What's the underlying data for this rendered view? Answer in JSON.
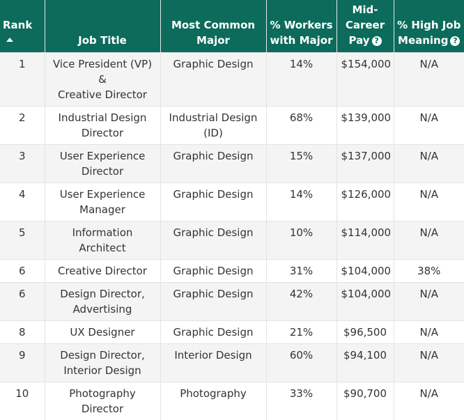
{
  "headers": {
    "rank": "Rank",
    "job_title": "Job Title",
    "major_line1": "Most Common",
    "major_line2": "Major",
    "pct_line1": "% Workers",
    "pct_line2": "with Major",
    "pay_line1": "Mid-",
    "pay_line2": "Career",
    "pay_line3": "Pay",
    "meaning_line1": "% High Job",
    "meaning_line2": "Meaning"
  },
  "icons": {
    "sort": "sort-ascending-icon",
    "help": "question-circle-icon",
    "help_glyph": "?"
  },
  "colors": {
    "header_bg": "#0c6b5a",
    "row_alt": "#f4f4f4"
  },
  "rows": [
    {
      "rank": "1",
      "job1": "Vice President (VP) &",
      "job2": "Creative Director",
      "major1": "Graphic Design",
      "major2": "",
      "pct": "14%",
      "pay": "$154,000",
      "meaning": "N/A"
    },
    {
      "rank": "2",
      "job1": "Industrial Design",
      "job2": "Director",
      "major1": "Industrial Design",
      "major2": "(ID)",
      "pct": "68%",
      "pay": "$139,000",
      "meaning": "N/A"
    },
    {
      "rank": "3",
      "job1": "User Experience",
      "job2": "Director",
      "major1": "Graphic Design",
      "major2": "",
      "pct": "15%",
      "pay": "$137,000",
      "meaning": "N/A"
    },
    {
      "rank": "4",
      "job1": "User Experience",
      "job2": "Manager",
      "major1": "Graphic Design",
      "major2": "",
      "pct": "14%",
      "pay": "$126,000",
      "meaning": "N/A"
    },
    {
      "rank": "5",
      "job1": "Information",
      "job2": "Architect",
      "major1": "Graphic Design",
      "major2": "",
      "pct": "10%",
      "pay": "$114,000",
      "meaning": "N/A"
    },
    {
      "rank": "6",
      "job1": "Creative Director",
      "job2": "",
      "major1": "Graphic Design",
      "major2": "",
      "pct": "31%",
      "pay": "$104,000",
      "meaning": "38%"
    },
    {
      "rank": "6",
      "job1": "Design Director,",
      "job2": "Advertising",
      "major1": "Graphic Design",
      "major2": "",
      "pct": "42%",
      "pay": "$104,000",
      "meaning": "N/A"
    },
    {
      "rank": "8",
      "job1": "UX Designer",
      "job2": "",
      "major1": "Graphic Design",
      "major2": "",
      "pct": "21%",
      "pay": "$96,500",
      "meaning": "N/A"
    },
    {
      "rank": "9",
      "job1": "Design Director,",
      "job2": "Interior Design",
      "major1": "Interior Design",
      "major2": "",
      "pct": "60%",
      "pay": "$94,100",
      "meaning": "N/A"
    },
    {
      "rank": "10",
      "job1": "Photography",
      "job2": "Director",
      "major1": "Photography",
      "major2": "",
      "pct": "33%",
      "pay": "$90,700",
      "meaning": "N/A"
    }
  ]
}
